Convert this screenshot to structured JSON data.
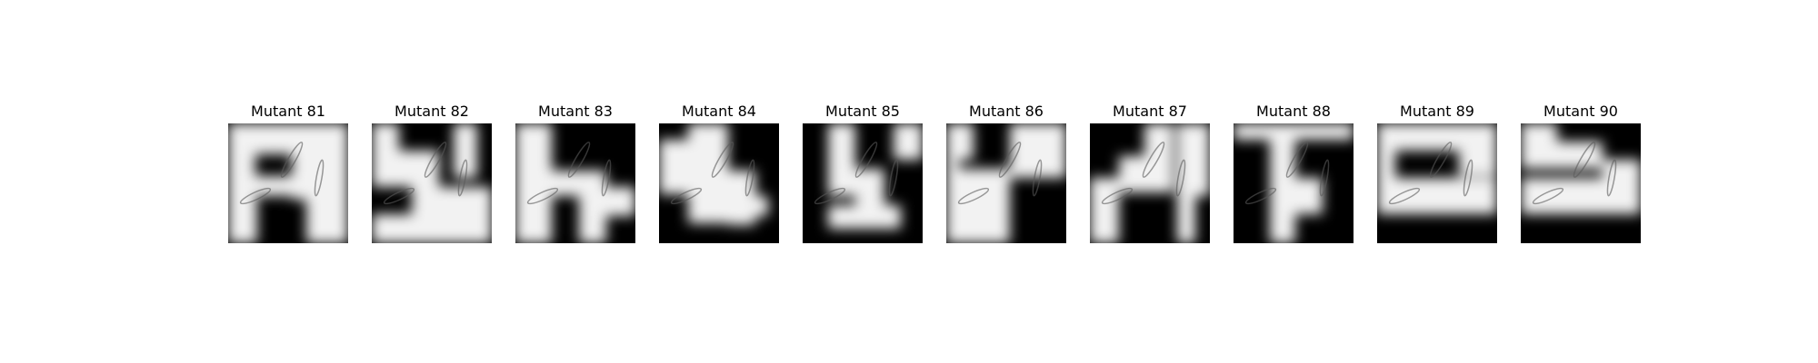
{
  "panels": [
    {
      "title": "Mutant 81"
    },
    {
      "title": "Mutant 82"
    },
    {
      "title": "Mutant 83"
    },
    {
      "title": "Mutant 84"
    },
    {
      "title": "Mutant 85"
    },
    {
      "title": "Mutant 86"
    },
    {
      "title": "Mutant 87"
    },
    {
      "title": "Mutant 88"
    },
    {
      "title": "Mutant 89"
    },
    {
      "title": "Mutant 90"
    }
  ],
  "colors": {
    "background": "#ffffff",
    "mask_dark": "#000000",
    "mask_light": "#f2f2f2",
    "cell_stroke": "#5a5a5a"
  }
}
